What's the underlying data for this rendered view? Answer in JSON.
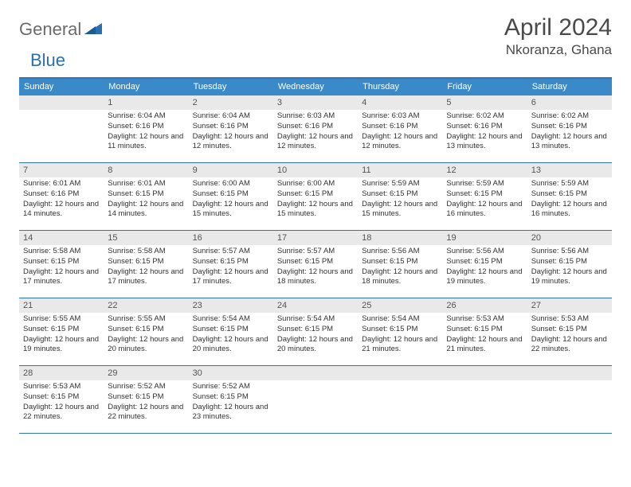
{
  "brand": {
    "part1": "General",
    "part2": "Blue"
  },
  "title": "April 2024",
  "location": "Nkoranza, Ghana",
  "colors": {
    "header_bar": "#3a8ac9",
    "border": "#2f75b5",
    "daynum_bg": "#e9e9e9",
    "text_dark": "#4a4a4a",
    "logo_gray": "#6b6b6b",
    "logo_blue": "#2b6fb0"
  },
  "weekdays": [
    "Sunday",
    "Monday",
    "Tuesday",
    "Wednesday",
    "Thursday",
    "Friday",
    "Saturday"
  ],
  "first_weekday_offset": 1,
  "days": [
    {
      "n": 1,
      "sr": "6:04 AM",
      "ss": "6:16 PM",
      "dl": "12 hours and 11 minutes."
    },
    {
      "n": 2,
      "sr": "6:04 AM",
      "ss": "6:16 PM",
      "dl": "12 hours and 12 minutes."
    },
    {
      "n": 3,
      "sr": "6:03 AM",
      "ss": "6:16 PM",
      "dl": "12 hours and 12 minutes."
    },
    {
      "n": 4,
      "sr": "6:03 AM",
      "ss": "6:16 PM",
      "dl": "12 hours and 12 minutes."
    },
    {
      "n": 5,
      "sr": "6:02 AM",
      "ss": "6:16 PM",
      "dl": "12 hours and 13 minutes."
    },
    {
      "n": 6,
      "sr": "6:02 AM",
      "ss": "6:16 PM",
      "dl": "12 hours and 13 minutes."
    },
    {
      "n": 7,
      "sr": "6:01 AM",
      "ss": "6:16 PM",
      "dl": "12 hours and 14 minutes."
    },
    {
      "n": 8,
      "sr": "6:01 AM",
      "ss": "6:15 PM",
      "dl": "12 hours and 14 minutes."
    },
    {
      "n": 9,
      "sr": "6:00 AM",
      "ss": "6:15 PM",
      "dl": "12 hours and 15 minutes."
    },
    {
      "n": 10,
      "sr": "6:00 AM",
      "ss": "6:15 PM",
      "dl": "12 hours and 15 minutes."
    },
    {
      "n": 11,
      "sr": "5:59 AM",
      "ss": "6:15 PM",
      "dl": "12 hours and 15 minutes."
    },
    {
      "n": 12,
      "sr": "5:59 AM",
      "ss": "6:15 PM",
      "dl": "12 hours and 16 minutes."
    },
    {
      "n": 13,
      "sr": "5:59 AM",
      "ss": "6:15 PM",
      "dl": "12 hours and 16 minutes."
    },
    {
      "n": 14,
      "sr": "5:58 AM",
      "ss": "6:15 PM",
      "dl": "12 hours and 17 minutes."
    },
    {
      "n": 15,
      "sr": "5:58 AM",
      "ss": "6:15 PM",
      "dl": "12 hours and 17 minutes."
    },
    {
      "n": 16,
      "sr": "5:57 AM",
      "ss": "6:15 PM",
      "dl": "12 hours and 17 minutes."
    },
    {
      "n": 17,
      "sr": "5:57 AM",
      "ss": "6:15 PM",
      "dl": "12 hours and 18 minutes."
    },
    {
      "n": 18,
      "sr": "5:56 AM",
      "ss": "6:15 PM",
      "dl": "12 hours and 18 minutes."
    },
    {
      "n": 19,
      "sr": "5:56 AM",
      "ss": "6:15 PM",
      "dl": "12 hours and 19 minutes."
    },
    {
      "n": 20,
      "sr": "5:56 AM",
      "ss": "6:15 PM",
      "dl": "12 hours and 19 minutes."
    },
    {
      "n": 21,
      "sr": "5:55 AM",
      "ss": "6:15 PM",
      "dl": "12 hours and 19 minutes."
    },
    {
      "n": 22,
      "sr": "5:55 AM",
      "ss": "6:15 PM",
      "dl": "12 hours and 20 minutes."
    },
    {
      "n": 23,
      "sr": "5:54 AM",
      "ss": "6:15 PM",
      "dl": "12 hours and 20 minutes."
    },
    {
      "n": 24,
      "sr": "5:54 AM",
      "ss": "6:15 PM",
      "dl": "12 hours and 20 minutes."
    },
    {
      "n": 25,
      "sr": "5:54 AM",
      "ss": "6:15 PM",
      "dl": "12 hours and 21 minutes."
    },
    {
      "n": 26,
      "sr": "5:53 AM",
      "ss": "6:15 PM",
      "dl": "12 hours and 21 minutes."
    },
    {
      "n": 27,
      "sr": "5:53 AM",
      "ss": "6:15 PM",
      "dl": "12 hours and 22 minutes."
    },
    {
      "n": 28,
      "sr": "5:53 AM",
      "ss": "6:15 PM",
      "dl": "12 hours and 22 minutes."
    },
    {
      "n": 29,
      "sr": "5:52 AM",
      "ss": "6:15 PM",
      "dl": "12 hours and 22 minutes."
    },
    {
      "n": 30,
      "sr": "5:52 AM",
      "ss": "6:15 PM",
      "dl": "12 hours and 23 minutes."
    }
  ],
  "labels": {
    "sunrise": "Sunrise:",
    "sunset": "Sunset:",
    "daylight": "Daylight:"
  }
}
